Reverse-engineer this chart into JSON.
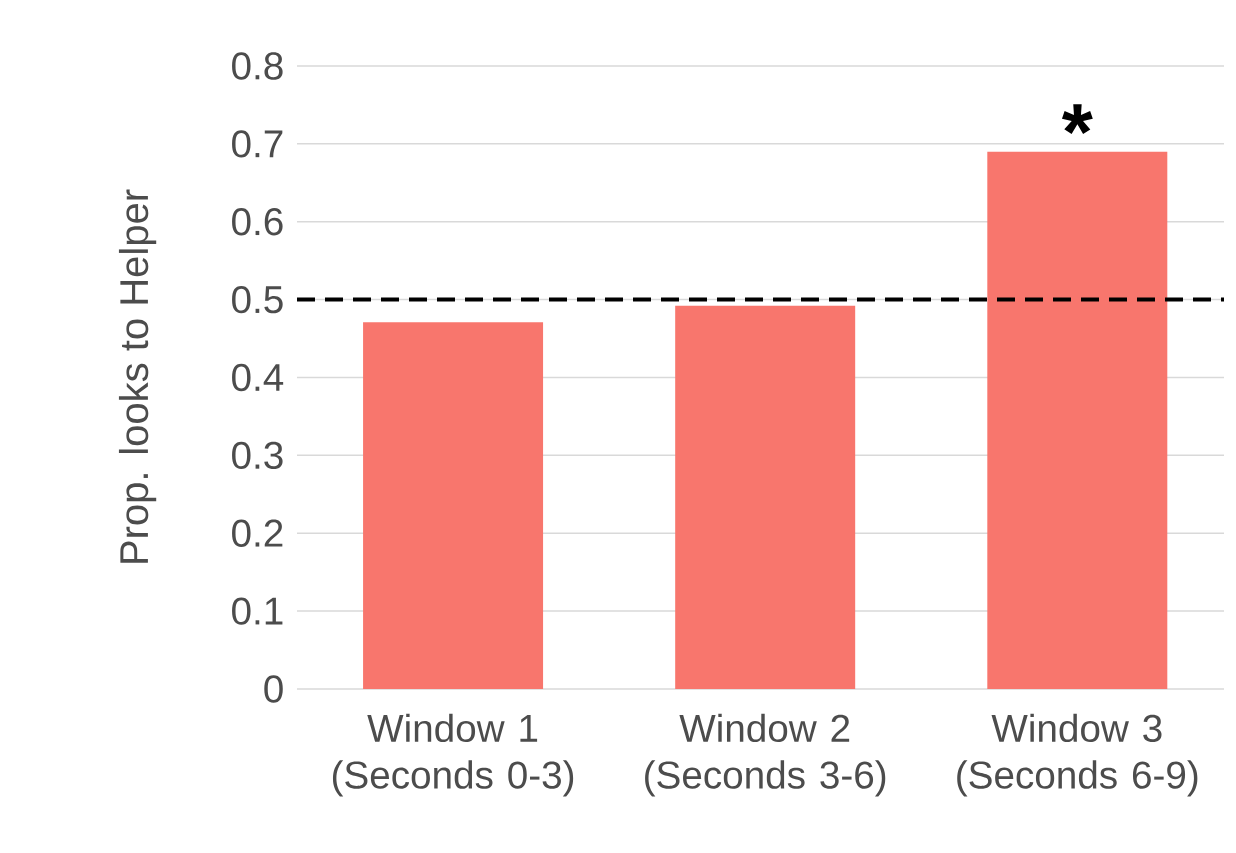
{
  "chart_data": {
    "type": "bar",
    "ylabel": "Prop. looks to Helper",
    "categories": [
      "Window 1 (Seconds 0-3)",
      "Window 2 (Seconds 3-6)",
      "Window 3 (Seconds 6-9)"
    ],
    "values": [
      0.471,
      0.492,
      0.69
    ],
    "color": "#f8766d",
    "ylim": [
      0,
      0.8
    ],
    "yticks": [
      0,
      0.1,
      0.2,
      0.3,
      0.4,
      0.5,
      0.6,
      0.7,
      0.8
    ],
    "grid": "y",
    "ref_lines": [
      {
        "axis": "y",
        "value": 0.5,
        "color": "#000000",
        "line_style": "dashed"
      }
    ],
    "annotations": [
      {
        "text": "*",
        "x": "Window 3 (Seconds 6-9)",
        "y": 0.69
      }
    ]
  }
}
